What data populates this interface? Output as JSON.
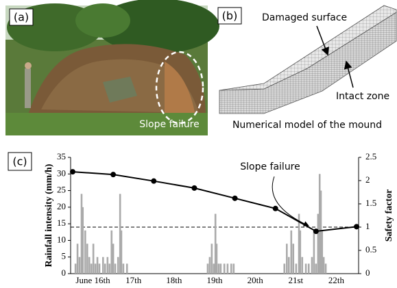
{
  "panels": {
    "a": {
      "label": "(a)",
      "annotation": "Slope failure"
    },
    "b": {
      "label": "(b)",
      "damaged": "Damaged surface",
      "intact": "Intact zone",
      "caption": "Numerical model of the mound"
    },
    "c": {
      "label": "(c)"
    }
  },
  "chart_data": {
    "type": "bar",
    "ylabel": "Rainfall intensity (mm/h)",
    "y2label": "Safety factor",
    "annotation": "Slope failure",
    "xlim": [
      15.45,
      22.55
    ],
    "xticks": [
      {
        "value": 16,
        "label": "June 16th"
      },
      {
        "value": 17,
        "label": "17th"
      },
      {
        "value": 18,
        "label": "18th"
      },
      {
        "value": 19,
        "label": "19th"
      },
      {
        "value": 20,
        "label": "20th"
      },
      {
        "value": 21,
        "label": "21st"
      },
      {
        "value": 22,
        "label": "22th"
      }
    ],
    "ylim": [
      0,
      35
    ],
    "yticks": [
      0,
      5,
      10,
      15,
      20,
      25,
      30,
      35
    ],
    "y2lim": [
      0,
      2.5
    ],
    "y2ticks": [
      0,
      0.5,
      1,
      1.5,
      2,
      2.5
    ],
    "reference_line": {
      "axis": "y2",
      "value": 1
    },
    "series": [
      {
        "type": "bar",
        "axis": "y",
        "color": "#aaaaaa",
        "x": [
          15.57,
          15.62,
          15.67,
          15.72,
          15.75,
          15.81,
          15.86,
          15.91,
          15.96,
          16.01,
          16.06,
          16.11,
          16.16,
          16.25,
          16.3,
          16.36,
          16.41,
          16.46,
          16.5,
          16.55,
          16.62,
          16.67,
          16.7,
          16.75,
          16.84,
          18.83,
          18.88,
          18.93,
          18.98,
          19.02,
          19.05,
          19.1,
          19.15,
          19.24,
          19.32,
          19.41,
          19.47,
          20.72,
          20.78,
          20.83,
          20.89,
          20.94,
          21.01,
          21.08,
          21.11,
          21.16,
          21.25,
          21.32,
          21.4,
          21.45,
          21.5,
          21.55,
          21.59,
          21.62,
          21.65,
          21.69,
          21.74
        ],
        "values": [
          3,
          9,
          5,
          24,
          20,
          13,
          9,
          5,
          3,
          9,
          3,
          5,
          3,
          5,
          3,
          5,
          3,
          13,
          9,
          3,
          5,
          24,
          13,
          3,
          3,
          3,
          5,
          9,
          3,
          18,
          9,
          3,
          3,
          3,
          3,
          3,
          3,
          3,
          9,
          5,
          13,
          9,
          3,
          18,
          13,
          5,
          3,
          3,
          5,
          13,
          3,
          18,
          30,
          25,
          13,
          5,
          3
        ]
      },
      {
        "type": "line",
        "axis": "y2",
        "color": "#000000",
        "x": [
          15.5,
          16.5,
          17.5,
          18.5,
          19.5,
          20.5,
          21.5,
          22.5
        ],
        "values": [
          2.19,
          2.13,
          1.99,
          1.84,
          1.62,
          1.4,
          0.91,
          1.01
        ]
      }
    ]
  }
}
